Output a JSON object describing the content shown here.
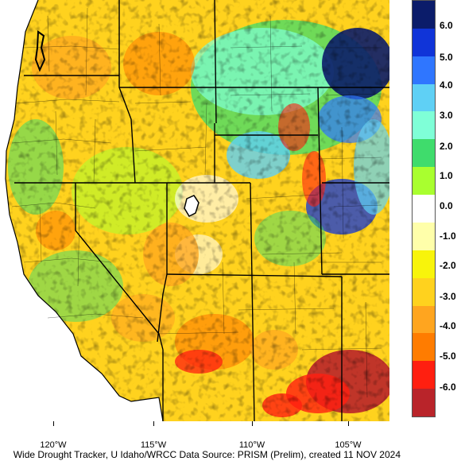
{
  "legend": {
    "swatches": [
      {
        "color": "#0b1c6a"
      },
      {
        "color": "#1034d8"
      },
      {
        "color": "#2f76ff"
      },
      {
        "color": "#5fd0f5"
      },
      {
        "color": "#7fffd7"
      },
      {
        "color": "#3fdc6c"
      },
      {
        "color": "#a9ff2f"
      },
      {
        "color": "#ffffff"
      },
      {
        "color": "#ffffaa"
      },
      {
        "color": "#f8f40b"
      },
      {
        "color": "#ffd21e"
      },
      {
        "color": "#ffa51f"
      },
      {
        "color": "#ff7c00"
      },
      {
        "color": "#ff1f10"
      },
      {
        "color": "#b9242a"
      }
    ],
    "labels": [
      "6.0",
      "5.0",
      "4.0",
      "3.0",
      "2.0",
      "1.0",
      "0.0",
      "-1.0",
      "-2.0",
      "-3.0",
      "-4.0",
      "-5.0",
      "-6.0"
    ]
  },
  "longitude_labels": [
    "120°W",
    "115°W",
    "110°W",
    "105°W"
  ],
  "credit": "Wide Drought Tracker, U Idaho/WRCC Data Source: PRISM (Prelim), created 11 NOV 2024"
}
